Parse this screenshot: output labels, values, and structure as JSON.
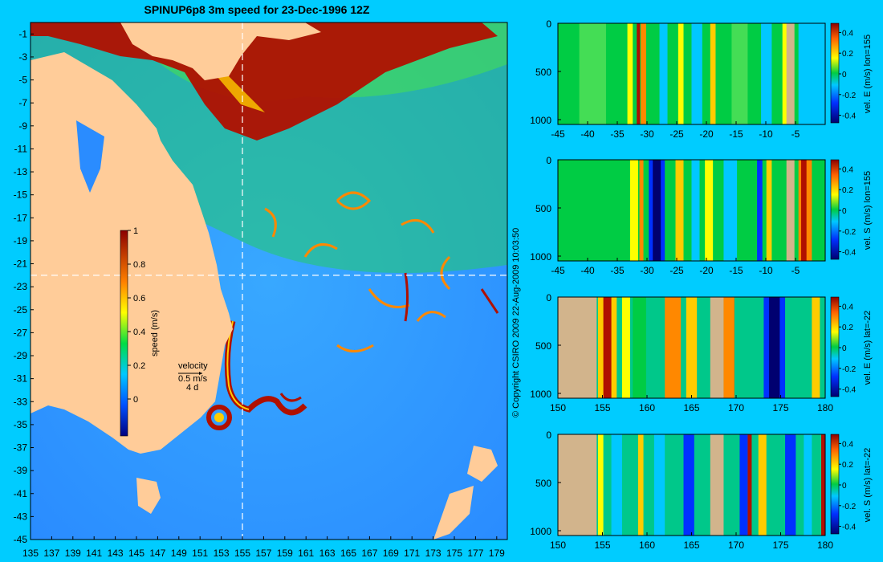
{
  "title": "SPINUP6p8 3m speed for 23-Dec-1996 12Z",
  "copyright": "© Copyright CSIRO 2009   22-Aug-2009 10:03:50",
  "map": {
    "lon_ticks": [
      "135",
      "137",
      "139",
      "141",
      "143",
      "145",
      "147",
      "149",
      "151",
      "153",
      "155",
      "157",
      "159",
      "161",
      "163",
      "165",
      "167",
      "169",
      "171",
      "173",
      "175",
      "177",
      "179"
    ],
    "lat_ticks": [
      "-1",
      "-3",
      "-5",
      "-7",
      "-9",
      "-11",
      "-13",
      "-15",
      "-17",
      "-19",
      "-21",
      "-23",
      "-25",
      "-27",
      "-29",
      "-31",
      "-33",
      "-35",
      "-37",
      "-39",
      "-41",
      "-43",
      "-45"
    ],
    "colorbar_label": "speed (m/s)",
    "colorbar_ticks": [
      "1",
      "0.8",
      "0.6",
      "0.4",
      "0.2",
      "0"
    ],
    "velocity_label": "velocity",
    "velocity_value": "0.5 m/s",
    "velocity_days": "4 d",
    "section_lon": 155,
    "section_lat": -22
  },
  "panels": [
    {
      "label": "vel. E (m/s) lon=155",
      "x_ticks": [
        "-45",
        "-40",
        "-35",
        "-30",
        "-25",
        "-20",
        "-15",
        "-10",
        "-5"
      ],
      "y_ticks": [
        "0",
        "500",
        "1000"
      ],
      "cbar_ticks": [
        "0.4",
        "0.2",
        "0",
        "-0.2",
        "-0.4"
      ]
    },
    {
      "label": "vel. S (m/s) lon=155",
      "x_ticks": [
        "-45",
        "-40",
        "-35",
        "-30",
        "-25",
        "-20",
        "-15",
        "-10",
        "-5"
      ],
      "y_ticks": [
        "0",
        "500",
        "1000"
      ],
      "cbar_ticks": [
        "0.4",
        "0.2",
        "0",
        "-0.2",
        "-0.4"
      ]
    },
    {
      "label": "vel. E (m/s) lat=-22",
      "x_ticks": [
        "150",
        "155",
        "160",
        "165",
        "170",
        "175",
        "180"
      ],
      "y_ticks": [
        "0",
        "500",
        "1000"
      ],
      "cbar_ticks": [
        "0.4",
        "0.2",
        "0",
        "-0.2",
        "-0.4"
      ]
    },
    {
      "label": "vel. S (m/s) lat=-22",
      "x_ticks": [
        "150",
        "155",
        "160",
        "165",
        "170",
        "175",
        "180"
      ],
      "y_ticks": [
        "0",
        "500",
        "1000"
      ],
      "cbar_ticks": [
        "0.4",
        "0.2",
        "0",
        "-0.2",
        "-0.4"
      ]
    }
  ],
  "colors": {
    "background": "#00ccff",
    "land": "#ffcc99",
    "section_land": "#d2b48c",
    "ocean_low": "#2a8cff",
    "ocean_mid": "#00dd66",
    "ocean_high": "#b01000"
  }
}
